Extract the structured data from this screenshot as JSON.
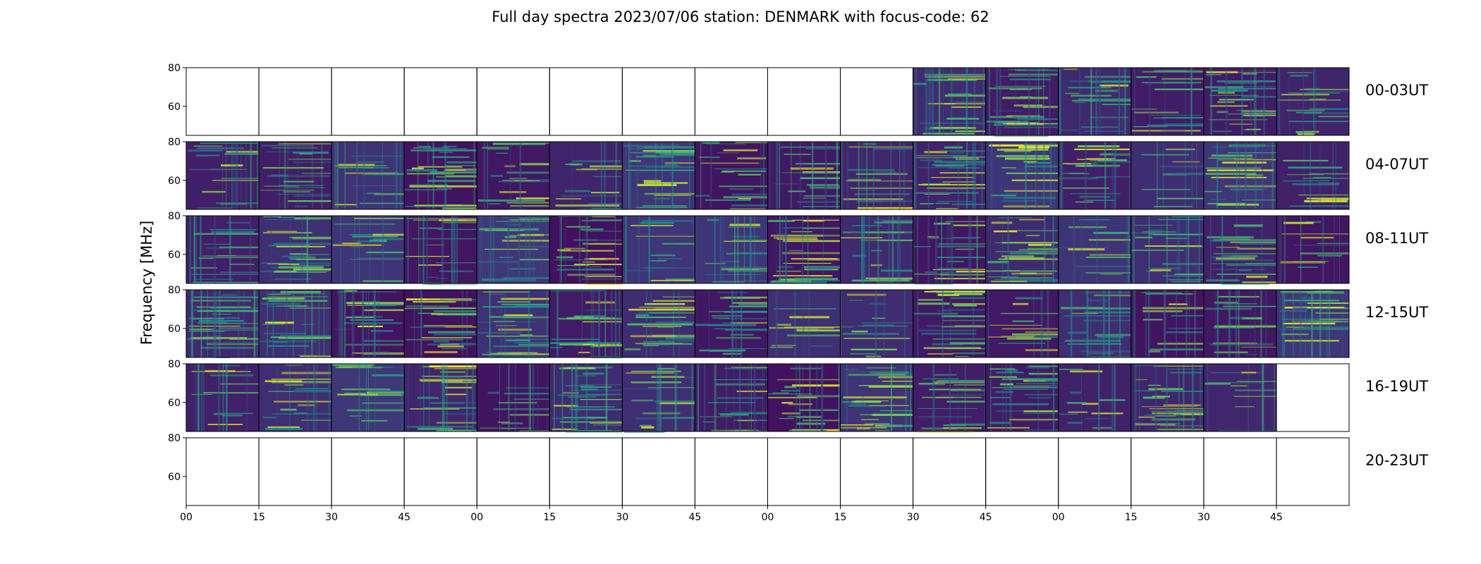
{
  "chart_data": {
    "type": "heatmap",
    "title": "Full day spectra 2023/07/06 station: DENMARK with focus-code: 62",
    "ylabel": "Frequency [MHz]",
    "xlabel": "",
    "yticks": [
      "60",
      "80"
    ],
    "ylim": [
      45,
      80
    ],
    "xtick_labels": [
      "00",
      "15",
      "30",
      "45",
      "00",
      "15",
      "30",
      "45",
      "00",
      "15",
      "30",
      "45",
      "00",
      "15",
      "30",
      "45"
    ],
    "panels_per_row": 16,
    "rows": [
      {
        "label": "00-03UT",
        "panels": [
          0,
          0,
          0,
          0,
          0,
          0,
          0,
          0,
          0,
          0,
          1,
          1,
          1,
          1,
          1,
          1
        ]
      },
      {
        "label": "04-07UT",
        "panels": [
          1,
          1,
          1,
          1,
          1,
          1,
          1,
          1,
          1,
          1,
          1,
          1,
          1,
          1,
          1,
          1
        ]
      },
      {
        "label": "08-11UT",
        "panels": [
          1,
          1,
          1,
          1,
          1,
          1,
          1,
          1,
          1,
          1,
          1,
          1,
          1,
          1,
          1,
          1
        ]
      },
      {
        "label": "12-15UT",
        "panels": [
          1,
          1,
          1,
          1,
          1,
          1,
          1,
          1,
          1,
          1,
          1,
          1,
          1,
          1,
          1,
          1
        ]
      },
      {
        "label": "16-19UT",
        "panels": [
          1,
          1,
          1,
          1,
          1,
          1,
          1,
          1,
          1,
          1,
          1,
          1,
          1,
          1,
          1,
          0
        ]
      },
      {
        "label": "20-23UT",
        "panels": [
          0,
          0,
          0,
          0,
          0,
          0,
          0,
          0,
          0,
          0,
          0,
          0,
          0,
          0,
          0,
          0
        ]
      }
    ],
    "colormap": [
      "#440154",
      "#3b528b",
      "#21918c",
      "#5ec962",
      "#fde725"
    ],
    "grid": false
  }
}
